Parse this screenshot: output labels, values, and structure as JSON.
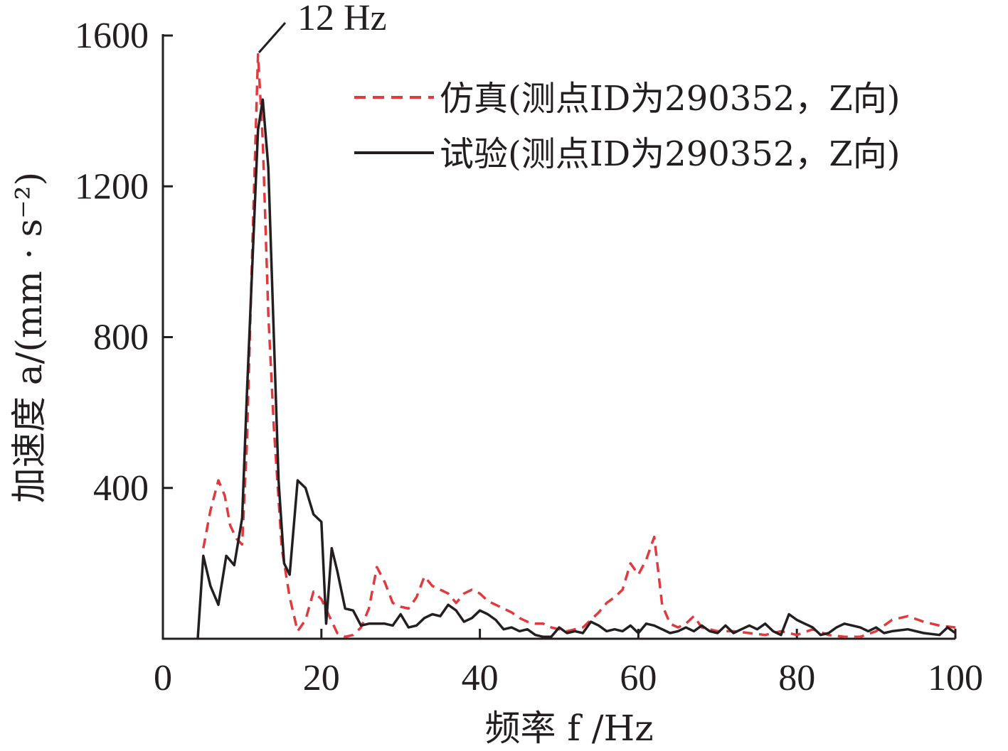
{
  "chart_data": {
    "type": "line",
    "xlabel": "频率 f /Hz",
    "ylabel": "加速度 a/(mm · s⁻²)",
    "xlim": [
      0,
      100
    ],
    "ylim": [
      0,
      1600
    ],
    "xticks": [
      0,
      20,
      40,
      60,
      80,
      100
    ],
    "yticks": [
      400,
      800,
      1200,
      1600
    ],
    "x_tick_labels": [
      "0",
      "20",
      "40",
      "60",
      "80",
      "100"
    ],
    "y_tick_labels": [
      "400",
      "800",
      "1200",
      "1600"
    ],
    "grid": false,
    "legend_position": "top-right",
    "annotation": {
      "text": "12 Hz",
      "x": 12,
      "y": 1550
    },
    "series": [
      {
        "name": "仿真(测点ID为290352，Z向)",
        "color": "#e0393e",
        "dash": true,
        "points": [
          [
            5.1,
            240
          ],
          [
            6.0,
            340
          ],
          [
            7.0,
            420
          ],
          [
            7.8,
            380
          ],
          [
            8.5,
            300
          ],
          [
            9.3,
            265
          ],
          [
            10.0,
            250
          ],
          [
            10.6,
            520
          ],
          [
            11.3,
            1050
          ],
          [
            12.0,
            1550
          ],
          [
            12.6,
            1320
          ],
          [
            13.3,
            860
          ],
          [
            14.0,
            560
          ],
          [
            15.0,
            240
          ],
          [
            16.0,
            110
          ],
          [
            17.0,
            20
          ],
          [
            18.0,
            50
          ],
          [
            19.0,
            125
          ],
          [
            20.0,
            105
          ],
          [
            21.0,
            60
          ],
          [
            22.0,
            15
          ],
          [
            23.0,
            5
          ],
          [
            24.0,
            10
          ],
          [
            25.0,
            30
          ],
          [
            26.0,
            80
          ],
          [
            27.0,
            190
          ],
          [
            28.0,
            150
          ],
          [
            29.0,
            95
          ],
          [
            30.0,
            85
          ],
          [
            31.0,
            80
          ],
          [
            32.0,
            110
          ],
          [
            33.0,
            165
          ],
          [
            34.0,
            140
          ],
          [
            35.0,
            130
          ],
          [
            36.0,
            120
          ],
          [
            37.0,
            95
          ],
          [
            38.0,
            120
          ],
          [
            39.0,
            130
          ],
          [
            40.0,
            120
          ],
          [
            41.0,
            100
          ],
          [
            42.0,
            90
          ],
          [
            43.0,
            80
          ],
          [
            44.0,
            70
          ],
          [
            45.0,
            55
          ],
          [
            46.0,
            45
          ],
          [
            47.0,
            40
          ],
          [
            48.0,
            40
          ],
          [
            49.0,
            30
          ],
          [
            50.0,
            25
          ],
          [
            51.0,
            20
          ],
          [
            52.0,
            25
          ],
          [
            53.0,
            30
          ],
          [
            54.0,
            50
          ],
          [
            55.0,
            70
          ],
          [
            56.0,
            95
          ],
          [
            57.0,
            110
          ],
          [
            58.0,
            130
          ],
          [
            59.0,
            200
          ],
          [
            60.0,
            170
          ],
          [
            61.0,
            210
          ],
          [
            62.0,
            270
          ],
          [
            63.0,
            90
          ],
          [
            64.0,
            40
          ],
          [
            65.0,
            30
          ],
          [
            66.0,
            40
          ],
          [
            67.0,
            60
          ],
          [
            68.0,
            30
          ],
          [
            69.0,
            25
          ],
          [
            70.0,
            20
          ],
          [
            72.0,
            20
          ],
          [
            74.0,
            15
          ],
          [
            76.0,
            10
          ],
          [
            78.0,
            20
          ],
          [
            80.0,
            10
          ],
          [
            82.0,
            25
          ],
          [
            84.0,
            10
          ],
          [
            86.0,
            5
          ],
          [
            88.0,
            5
          ],
          [
            90.0,
            20
          ],
          [
            92.0,
            50
          ],
          [
            94.0,
            60
          ],
          [
            96.0,
            45
          ],
          [
            98.0,
            35
          ],
          [
            100.0,
            30
          ]
        ]
      },
      {
        "name": "试验(测点ID为290352，Z向)",
        "color": "#231f20",
        "dash": false,
        "points": [
          [
            4.4,
            0
          ],
          [
            5.1,
            220
          ],
          [
            6.0,
            140
          ],
          [
            7.0,
            90
          ],
          [
            8.0,
            220
          ],
          [
            9.0,
            195
          ],
          [
            10.0,
            320
          ],
          [
            10.6,
            650
          ],
          [
            11.3,
            1000
          ],
          [
            12.0,
            1350
          ],
          [
            12.6,
            1430
          ],
          [
            13.3,
            1250
          ],
          [
            14.0,
            800
          ],
          [
            14.6,
            420
          ],
          [
            15.3,
            200
          ],
          [
            16.0,
            170
          ],
          [
            17.0,
            420
          ],
          [
            18.0,
            400
          ],
          [
            19.0,
            330
          ],
          [
            20.0,
            310
          ],
          [
            20.6,
            40
          ],
          [
            21.3,
            240
          ],
          [
            22.0,
            180
          ],
          [
            23.0,
            80
          ],
          [
            24.0,
            75
          ],
          [
            25.0,
            35
          ],
          [
            26.0,
            40
          ],
          [
            27.0,
            40
          ],
          [
            28.0,
            40
          ],
          [
            29.0,
            35
          ],
          [
            30.0,
            65
          ],
          [
            31.0,
            30
          ],
          [
            32.0,
            35
          ],
          [
            33.0,
            55
          ],
          [
            34.0,
            65
          ],
          [
            35.0,
            60
          ],
          [
            36.0,
            90
          ],
          [
            37.0,
            75
          ],
          [
            38.0,
            45
          ],
          [
            39.0,
            55
          ],
          [
            40.0,
            75
          ],
          [
            41.0,
            65
          ],
          [
            42.0,
            50
          ],
          [
            43.0,
            25
          ],
          [
            44.0,
            30
          ],
          [
            45.0,
            20
          ],
          [
            46.0,
            25
          ],
          [
            47.0,
            10
          ],
          [
            48.0,
            5
          ],
          [
            49.0,
            5
          ],
          [
            50.0,
            30
          ],
          [
            51.0,
            15
          ],
          [
            52.0,
            20
          ],
          [
            53.0,
            15
          ],
          [
            54.0,
            45
          ],
          [
            55.0,
            35
          ],
          [
            56.0,
            20
          ],
          [
            57.0,
            25
          ],
          [
            58.0,
            20
          ],
          [
            59.0,
            35
          ],
          [
            60.0,
            15
          ],
          [
            61.0,
            40
          ],
          [
            62.0,
            35
          ],
          [
            63.0,
            25
          ],
          [
            64.0,
            15
          ],
          [
            65.0,
            20
          ],
          [
            66.0,
            30
          ],
          [
            67.0,
            20
          ],
          [
            68.0,
            35
          ],
          [
            69.0,
            20
          ],
          [
            70.0,
            15
          ],
          [
            71.0,
            35
          ],
          [
            72.0,
            15
          ],
          [
            73.0,
            25
          ],
          [
            74.0,
            35
          ],
          [
            75.0,
            25
          ],
          [
            76.0,
            40
          ],
          [
            77.0,
            20
          ],
          [
            78.0,
            10
          ],
          [
            79.0,
            65
          ],
          [
            80.0,
            50
          ],
          [
            81.0,
            40
          ],
          [
            82.0,
            30
          ],
          [
            83.0,
            10
          ],
          [
            84.0,
            15
          ],
          [
            85.0,
            30
          ],
          [
            86.0,
            40
          ],
          [
            87.0,
            35
          ],
          [
            88.0,
            30
          ],
          [
            89.0,
            20
          ],
          [
            90.0,
            30
          ],
          [
            91.0,
            15
          ],
          [
            92.0,
            20
          ],
          [
            94.0,
            25
          ],
          [
            96.0,
            15
          ],
          [
            98.0,
            10
          ],
          [
            99.0,
            30
          ],
          [
            100.0,
            15
          ]
        ]
      }
    ]
  }
}
